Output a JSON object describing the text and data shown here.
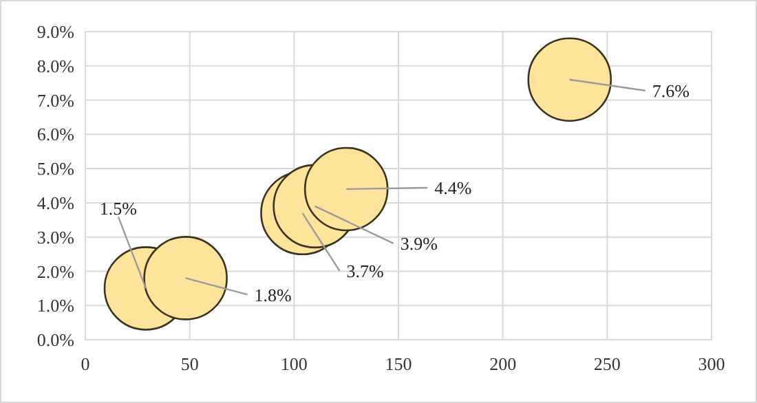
{
  "chart_data": {
    "type": "bubble",
    "x": [
      29,
      48,
      104,
      110,
      125,
      232
    ],
    "values": [
      1.5,
      1.8,
      3.7,
      3.9,
      4.4,
      7.6
    ],
    "sizes": [
      1,
      1,
      1,
      1,
      1,
      1
    ],
    "value_labels": [
      "1.5%",
      "1.8%",
      "3.7%",
      "3.9%",
      "4.4%",
      "7.6%"
    ],
    "color": "#fde49a",
    "xlim": [
      0,
      300
    ],
    "xticks": [
      0,
      50,
      100,
      150,
      200,
      250,
      300
    ],
    "ylim": [
      0,
      9
    ],
    "yticks": [
      {
        "value": 0,
        "label": "0.0%"
      },
      {
        "value": 1,
        "label": "1.0%"
      },
      {
        "value": 2,
        "label": "2.0%"
      },
      {
        "value": 3,
        "label": "3.0%"
      },
      {
        "value": 4,
        "label": "4.0%"
      },
      {
        "value": 5,
        "label": "5.0%"
      },
      {
        "value": 6,
        "label": "6.0%"
      },
      {
        "value": 7,
        "label": "7.0%"
      },
      {
        "value": 8,
        "label": "8.0%"
      },
      {
        "value": 9,
        "label": "9.0%"
      }
    ],
    "grid": true
  }
}
